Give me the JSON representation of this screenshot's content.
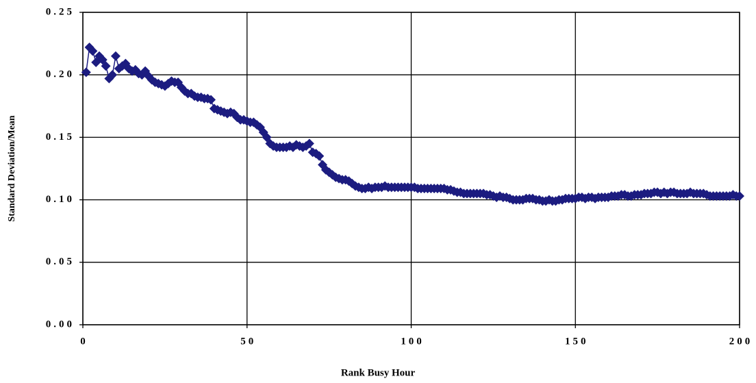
{
  "chart_data": {
    "type": "line",
    "x_label": "Rank Busy Hour",
    "y_label": "Standard Deviation/Mean",
    "x": [
      1,
      2,
      3,
      4,
      5,
      6,
      7,
      8,
      9,
      10,
      11,
      12,
      13,
      14,
      15,
      16,
      17,
      18,
      19,
      20,
      21,
      22,
      23,
      24,
      25,
      26,
      27,
      28,
      29,
      30,
      31,
      32,
      33,
      34,
      35,
      36,
      37,
      38,
      39,
      40,
      41,
      42,
      43,
      44,
      45,
      46,
      47,
      48,
      49,
      50,
      51,
      52,
      53,
      54,
      55,
      56,
      57,
      58,
      59,
      60,
      61,
      62,
      63,
      64,
      65,
      66,
      67,
      68,
      69,
      70,
      71,
      72,
      73,
      74,
      75,
      76,
      77,
      78,
      79,
      80,
      81,
      82,
      83,
      84,
      85,
      86,
      87,
      88,
      89,
      90,
      91,
      92,
      93,
      94,
      95,
      96,
      97,
      98,
      99,
      100,
      101,
      102,
      103,
      104,
      105,
      106,
      107,
      108,
      109,
      110,
      111,
      112,
      113,
      114,
      115,
      116,
      117,
      118,
      119,
      120,
      121,
      122,
      123,
      124,
      125,
      126,
      127,
      128,
      129,
      130,
      131,
      132,
      133,
      134,
      135,
      136,
      137,
      138,
      139,
      140,
      141,
      142,
      143,
      144,
      145,
      146,
      147,
      148,
      149,
      150,
      151,
      152,
      153,
      154,
      155,
      156,
      157,
      158,
      159,
      160,
      161,
      162,
      163,
      164,
      165,
      166,
      167,
      168,
      169,
      170,
      171,
      172,
      173,
      174,
      175,
      176,
      177,
      178,
      179,
      180,
      181,
      182,
      183,
      184,
      185,
      186,
      187,
      188,
      189,
      190,
      191,
      192,
      193,
      194,
      195,
      196,
      197,
      198,
      199,
      200
    ],
    "series": [
      {
        "color": "#1c1c80",
        "values": [
          0.202,
          0.222,
          0.219,
          0.21,
          0.215,
          0.212,
          0.207,
          0.197,
          0.2,
          0.215,
          0.205,
          0.207,
          0.209,
          0.205,
          0.203,
          0.204,
          0.201,
          0.2,
          0.203,
          0.199,
          0.196,
          0.194,
          0.193,
          0.192,
          0.191,
          0.193,
          0.195,
          0.194,
          0.194,
          0.19,
          0.187,
          0.185,
          0.185,
          0.183,
          0.182,
          0.182,
          0.181,
          0.181,
          0.18,
          0.173,
          0.172,
          0.171,
          0.17,
          0.169,
          0.17,
          0.169,
          0.166,
          0.164,
          0.164,
          0.163,
          0.162,
          0.162,
          0.16,
          0.158,
          0.154,
          0.15,
          0.145,
          0.143,
          0.142,
          0.142,
          0.142,
          0.142,
          0.143,
          0.142,
          0.144,
          0.143,
          0.142,
          0.143,
          0.145,
          0.138,
          0.137,
          0.135,
          0.128,
          0.124,
          0.122,
          0.12,
          0.118,
          0.117,
          0.116,
          0.116,
          0.115,
          0.113,
          0.111,
          0.11,
          0.109,
          0.109,
          0.11,
          0.109,
          0.11,
          0.11,
          0.11,
          0.111,
          0.11,
          0.11,
          0.11,
          0.11,
          0.11,
          0.11,
          0.11,
          0.11,
          0.11,
          0.109,
          0.109,
          0.109,
          0.109,
          0.109,
          0.109,
          0.109,
          0.109,
          0.109,
          0.108,
          0.108,
          0.107,
          0.106,
          0.106,
          0.105,
          0.105,
          0.105,
          0.105,
          0.105,
          0.105,
          0.105,
          0.104,
          0.104,
          0.103,
          0.102,
          0.103,
          0.102,
          0.102,
          0.101,
          0.1,
          0.1,
          0.1,
          0.1,
          0.101,
          0.101,
          0.101,
          0.1,
          0.1,
          0.099,
          0.099,
          0.1,
          0.099,
          0.099,
          0.1,
          0.1,
          0.101,
          0.101,
          0.101,
          0.101,
          0.102,
          0.102,
          0.101,
          0.102,
          0.102,
          0.101,
          0.102,
          0.102,
          0.102,
          0.102,
          0.103,
          0.103,
          0.103,
          0.104,
          0.104,
          0.103,
          0.103,
          0.104,
          0.104,
          0.104,
          0.105,
          0.105,
          0.105,
          0.106,
          0.106,
          0.105,
          0.106,
          0.105,
          0.106,
          0.106,
          0.105,
          0.105,
          0.105,
          0.105,
          0.106,
          0.105,
          0.105,
          0.105,
          0.105,
          0.104,
          0.103,
          0.103,
          0.103,
          0.103,
          0.103,
          0.103,
          0.103,
          0.104,
          0.103,
          0.103
        ]
      }
    ],
    "xlim": [
      0,
      200
    ],
    "xticks": [
      0,
      50,
      100,
      150,
      200
    ],
    "ylim": [
      0,
      0.25
    ],
    "yticks": [
      {
        "value": 0,
        "label": "0.00"
      },
      0.05,
      {
        "value": 0.1,
        "label": "0.10"
      },
      0.15,
      {
        "value": 0.2,
        "label": "0.20"
      },
      0.25
    ],
    "grid": true
  }
}
